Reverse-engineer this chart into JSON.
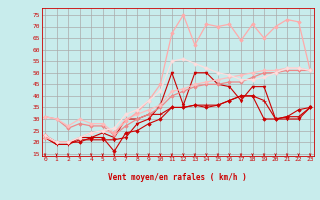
{
  "xlabel": "Vent moyen/en rafales ( km/h )",
  "bg_color": "#c8ecec",
  "grid_color": "#aaaaaa",
  "x": [
    0,
    1,
    2,
    3,
    4,
    5,
    6,
    7,
    8,
    9,
    10,
    11,
    12,
    13,
    14,
    15,
    16,
    17,
    18,
    19,
    20,
    21,
    22,
    23
  ],
  "lines": [
    {
      "y": [
        23,
        20,
        20,
        20,
        22,
        22,
        16,
        24,
        25,
        28,
        30,
        35,
        35,
        36,
        35,
        36,
        38,
        40,
        40,
        30,
        30,
        31,
        34,
        35
      ],
      "color": "#cc0000",
      "lw": 0.8,
      "marker": "D",
      "ms": 1.8
    },
    {
      "y": [
        22,
        19,
        19,
        21,
        21,
        21,
        21,
        22,
        28,
        30,
        36,
        50,
        36,
        50,
        50,
        45,
        44,
        38,
        44,
        44,
        30,
        30,
        30,
        35
      ],
      "color": "#cc0000",
      "lw": 0.8,
      "marker": "v",
      "ms": 2.0
    },
    {
      "y": [
        22,
        19,
        19,
        22,
        22,
        24,
        22,
        30,
        30,
        32,
        32,
        35,
        35,
        36,
        36,
        36,
        38,
        40,
        40,
        38,
        30,
        31,
        31,
        35
      ],
      "color": "#cc0000",
      "lw": 0.8,
      "marker": "+",
      "ms": 2.5
    },
    {
      "y": [
        31,
        30,
        26,
        28,
        27,
        27,
        23,
        27,
        30,
        32,
        35,
        40,
        42,
        44,
        45,
        45,
        46,
        46,
        48,
        50,
        50,
        51,
        51,
        51
      ],
      "color": "#ee8888",
      "lw": 0.9,
      "marker": "D",
      "ms": 1.8
    },
    {
      "y": [
        31,
        30,
        27,
        30,
        28,
        28,
        24,
        30,
        32,
        34,
        36,
        42,
        43,
        45,
        46,
        47,
        48,
        49,
        50,
        51,
        51,
        52,
        52,
        51
      ],
      "color": "#ffbbbb",
      "lw": 0.9,
      "marker": "D",
      "ms": 1.8
    },
    {
      "y": [
        22,
        20,
        20,
        22,
        24,
        25,
        24,
        29,
        33,
        38,
        45,
        67,
        75,
        62,
        71,
        70,
        71,
        64,
        71,
        65,
        70,
        73,
        72,
        51
      ],
      "color": "#ffaaaa",
      "lw": 0.9,
      "marker": "D",
      "ms": 1.8
    },
    {
      "y": [
        23,
        20,
        20,
        22,
        24,
        25,
        26,
        32,
        34,
        38,
        42,
        55,
        56,
        54,
        52,
        50,
        49,
        47,
        47,
        48,
        50,
        52,
        52,
        51
      ],
      "color": "#ffdddd",
      "lw": 0.9,
      "marker": "D",
      "ms": 1.8
    }
  ],
  "ylim": [
    14,
    78
  ],
  "yticks": [
    15,
    20,
    25,
    30,
    35,
    40,
    45,
    50,
    55,
    60,
    65,
    70,
    75
  ],
  "xlim": [
    -0.3,
    23.3
  ],
  "xticks": [
    0,
    1,
    2,
    3,
    4,
    5,
    6,
    7,
    8,
    9,
    10,
    11,
    12,
    13,
    14,
    15,
    16,
    17,
    18,
    19,
    20,
    21,
    22,
    23
  ],
  "xlabel_color": "#cc0000",
  "tick_color": "#cc0000",
  "arrow_color": "#cc0000"
}
